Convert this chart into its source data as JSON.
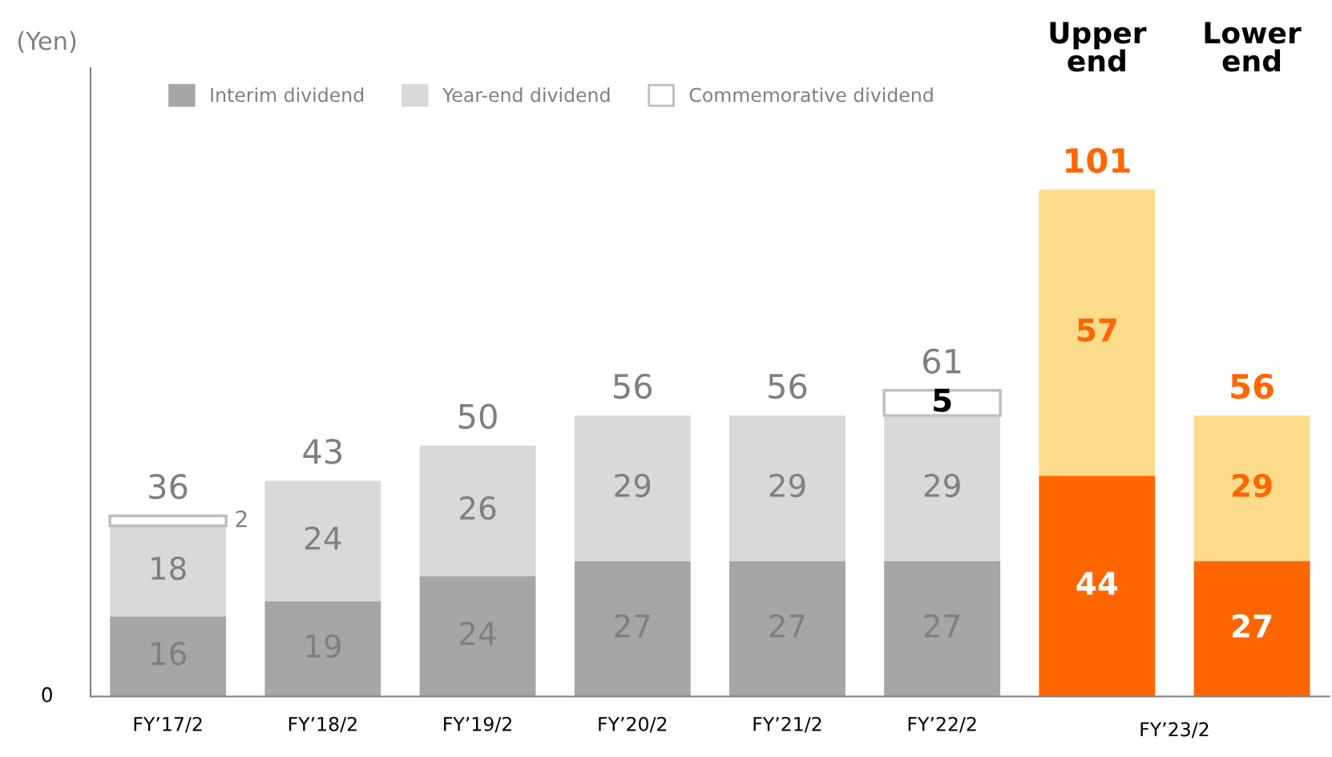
{
  "chart_data": {
    "type": "bar",
    "stacked": true,
    "categories": [
      "FY’17/2",
      "FY’18/2",
      "FY’19/2",
      "FY’20/2",
      "FY’21/2",
      "FY’22/2",
      null,
      null
    ],
    "series": [
      {
        "name": "Interim dividend",
        "color": "#a6a6a6",
        "colors": [
          "#a6a6a6",
          "#a6a6a6",
          "#a6a6a6",
          "#a6a6a6",
          "#a6a6a6",
          "#a6a6a6",
          "#ff6600",
          "#ff6600"
        ],
        "values": [
          16,
          19,
          24,
          27,
          27,
          27,
          44,
          27
        ]
      },
      {
        "name": "Year-end dividend",
        "color": "#d9d9d9",
        "colors": [
          "#d9d9d9",
          "#d9d9d9",
          "#d9d9d9",
          "#d9d9d9",
          "#d9d9d9",
          "#d9d9d9",
          "#fcdb8a",
          "#fcdb8a"
        ],
        "values": [
          18,
          24,
          26,
          29,
          29,
          29,
          57,
          29
        ]
      },
      {
        "name": "Commemorative dividend",
        "color": "#ffffff",
        "values": [
          2,
          null,
          null,
          null,
          null,
          5,
          null,
          null
        ]
      }
    ],
    "totals": [
      "36",
      "43",
      "50",
      "56",
      "56",
      "61",
      "101",
      "56"
    ],
    "data_labels": true,
    "legend": "top left",
    "annotations": [
      "Upper end",
      "Lower end",
      "FY’23/2",
      "0",
      "(Yen)"
    ]
  }
}
